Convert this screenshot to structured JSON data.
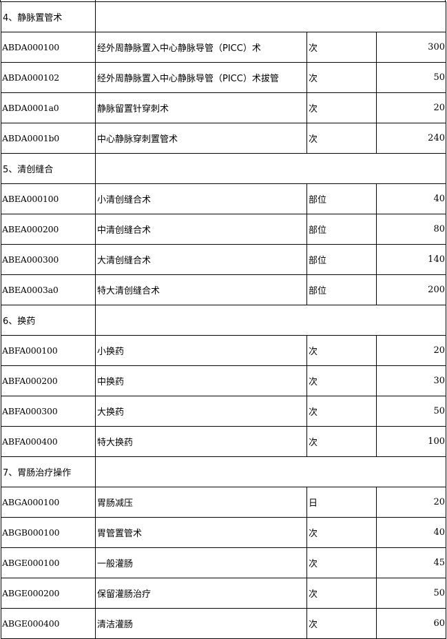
{
  "sections": [
    {
      "title": "4、静脉置管术",
      "rows": [
        {
          "code": "ABDA000100",
          "name": "经外周静脉置入中心静脉导管（PICC）术",
          "unit": "次",
          "price": "300"
        },
        {
          "code": "ABDA000102",
          "name": "经外周静脉置入中心静脉导管（PICC）术拔管",
          "unit": "次",
          "price": "50"
        },
        {
          "code": "ABDA0001a0",
          "name": "静脉留置针穿刺术",
          "unit": "次",
          "price": "20"
        },
        {
          "code": "ABDA0001b0",
          "name": "中心静脉穿刺置管术",
          "unit": "次",
          "price": "240"
        }
      ]
    },
    {
      "title": "5、清创缝合",
      "rows": [
        {
          "code": "ABEA000100",
          "name": "小清创缝合术",
          "unit": "部位",
          "price": "40"
        },
        {
          "code": "ABEA000200",
          "name": "中清创缝合术",
          "unit": "部位",
          "price": "80"
        },
        {
          "code": "ABEA000300",
          "name": "大清创缝合术",
          "unit": "部位",
          "price": "140"
        },
        {
          "code": "ABEA0003a0",
          "name": "特大清创缝合术",
          "unit": "部位",
          "price": "200"
        }
      ]
    },
    {
      "title": "6、换药",
      "rows": [
        {
          "code": "ABFA000100",
          "name": "小换药",
          "unit": "次",
          "price": "20"
        },
        {
          "code": "ABFA000200",
          "name": "中换药",
          "unit": "次",
          "price": "30"
        },
        {
          "code": "ABFA000300",
          "name": "大换药",
          "unit": "次",
          "price": "50"
        },
        {
          "code": "ABFA000400",
          "name": "特大换药",
          "unit": "次",
          "price": "100"
        }
      ]
    },
    {
      "title": "7、胃肠治疗操作",
      "rows": [
        {
          "code": "ABGA000100",
          "name": "胃肠减压",
          "unit": "日",
          "price": "20"
        },
        {
          "code": "ABGB000100",
          "name": "胃管置管术",
          "unit": "次",
          "price": "40"
        },
        {
          "code": "ABGE000100",
          "name": "一般灌肠",
          "unit": "次",
          "price": "45"
        },
        {
          "code": "ABGE000200",
          "name": "保留灌肠治疗",
          "unit": "次",
          "price": "50"
        },
        {
          "code": "ABGE000400",
          "name": "清洁灌肠",
          "unit": "次",
          "price": "60"
        }
      ]
    }
  ]
}
